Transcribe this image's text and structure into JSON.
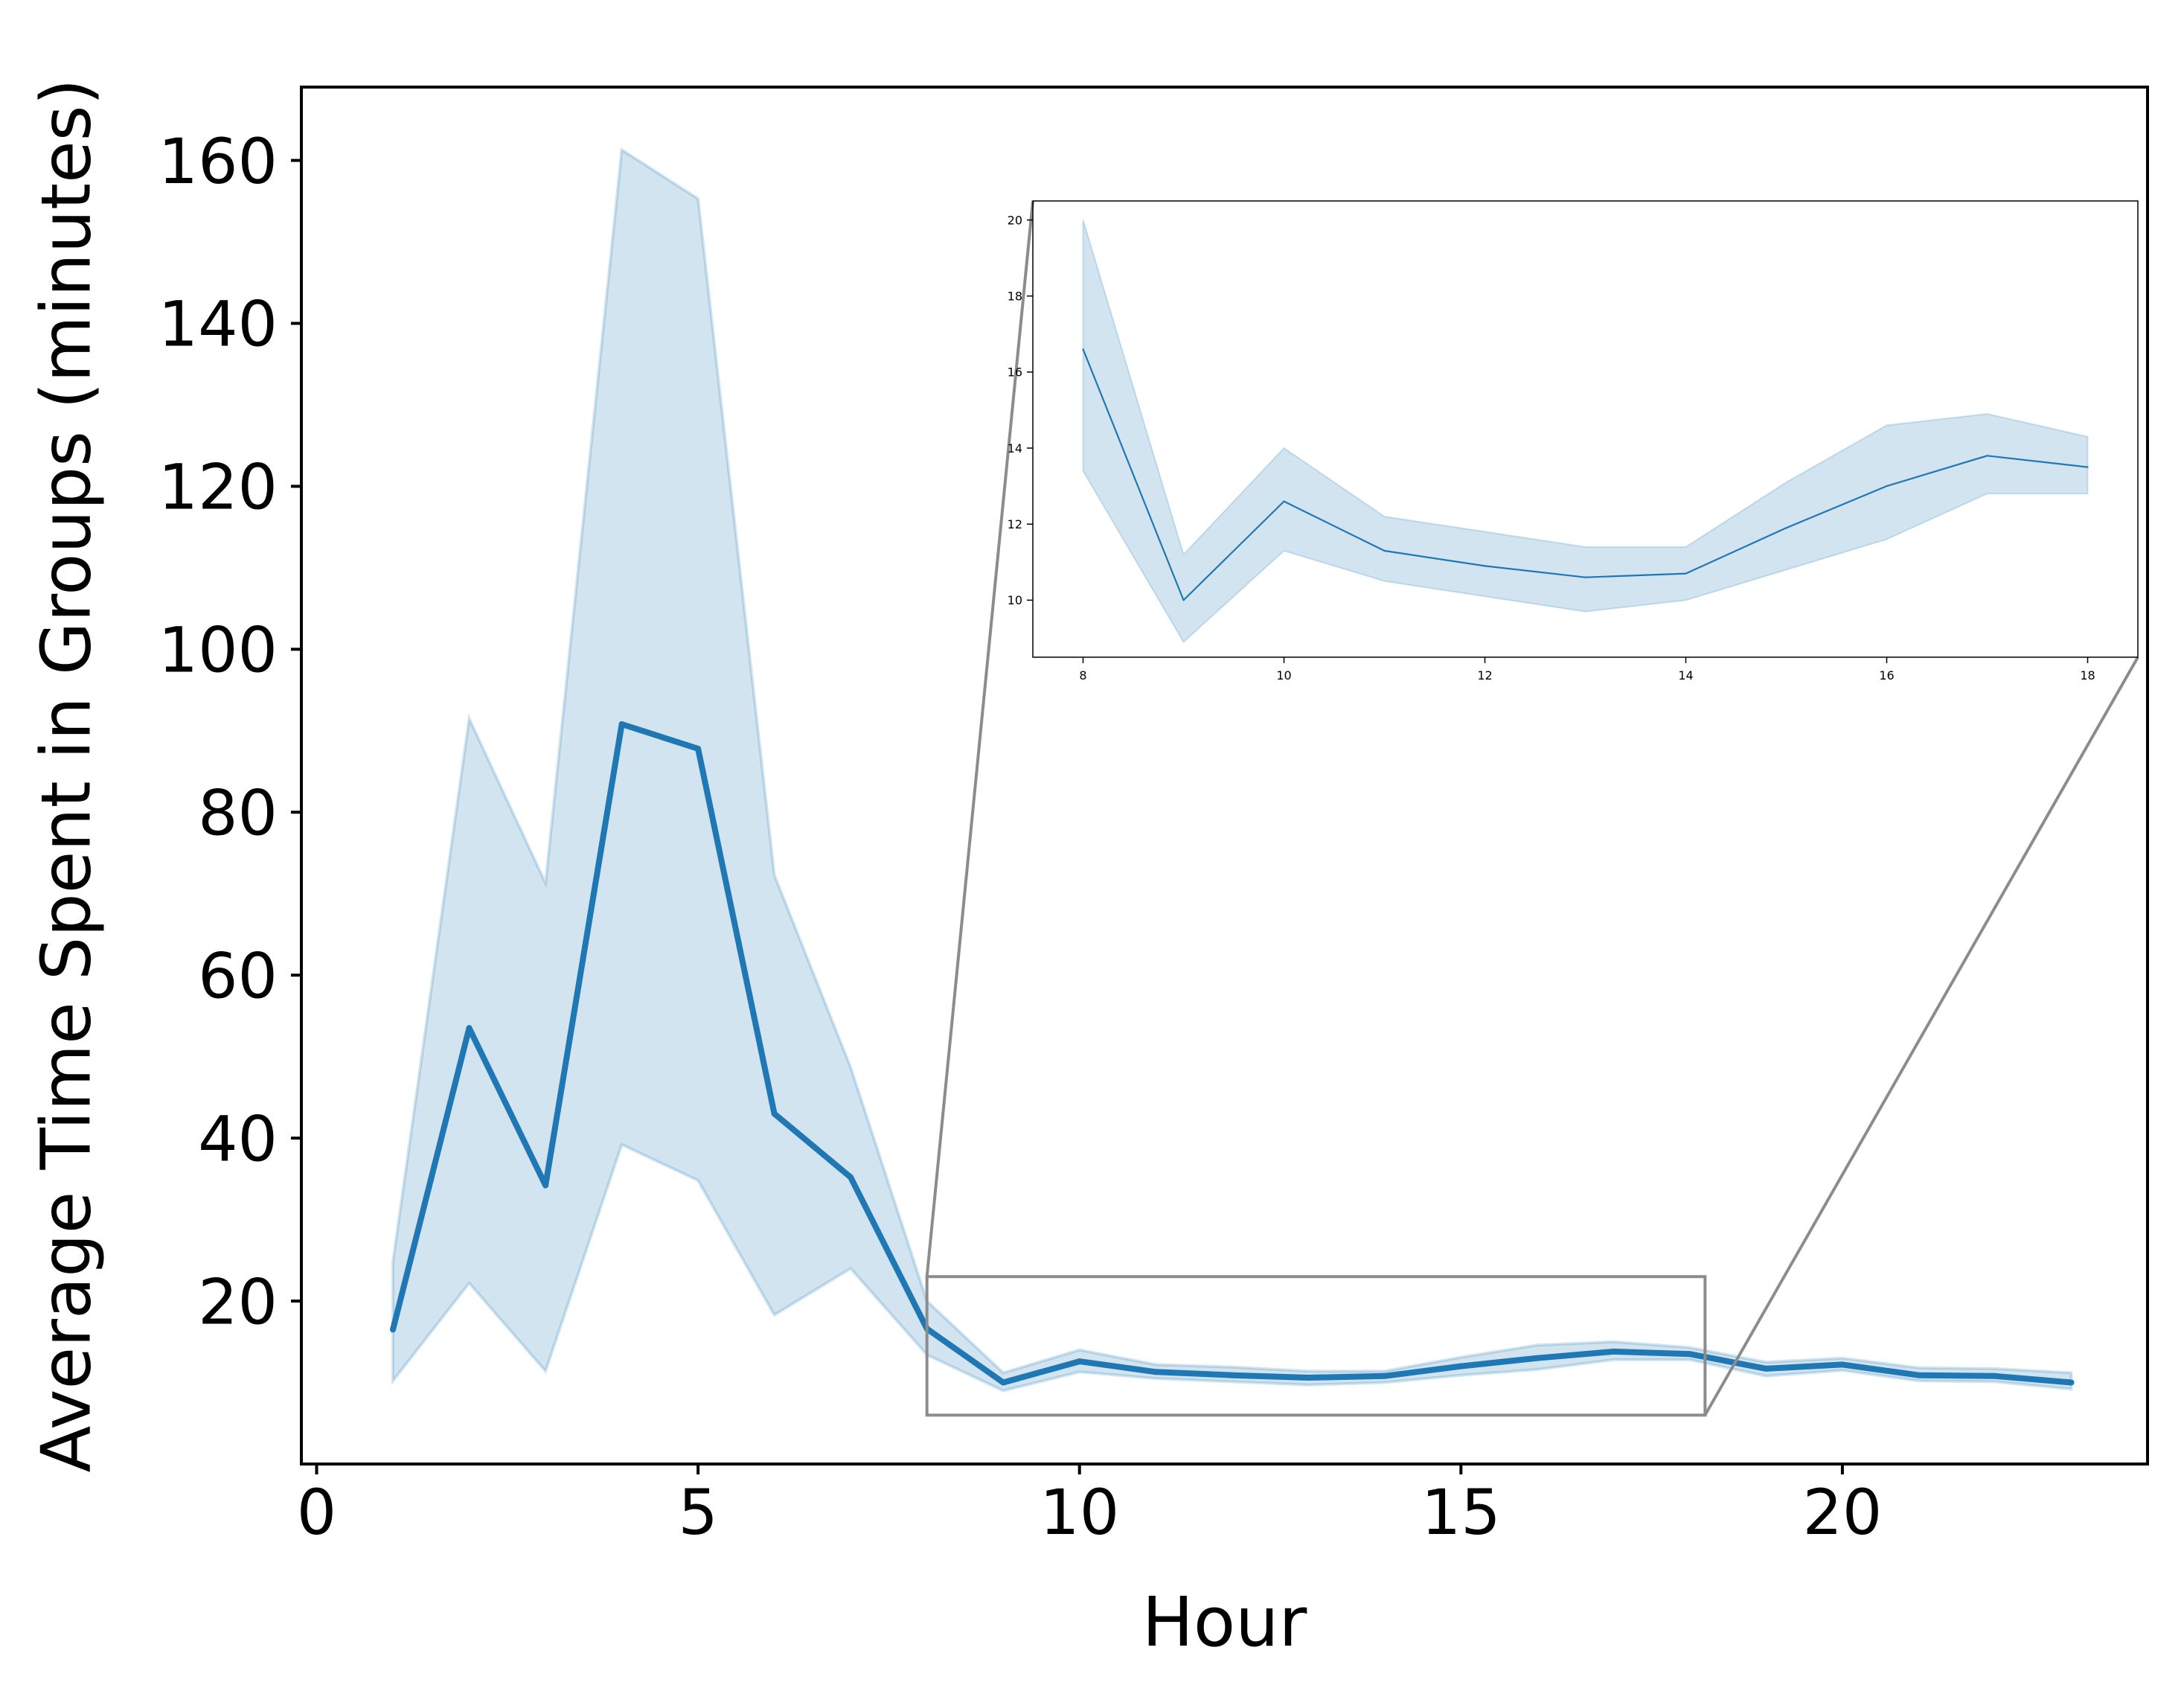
{
  "colors": {
    "line": "#1f77b4",
    "band": "#1f77b4",
    "zoom_box": "#8c8c8c",
    "axis": "#000000"
  },
  "chart_data": [
    {
      "type": "line",
      "title": "",
      "xlabel": "Hour",
      "ylabel": "Average Time Spent in Groups (minutes)",
      "xlim": [
        -0.2,
        24.0
      ],
      "ylim": [
        0,
        169
      ],
      "xticks": [
        0,
        5,
        10,
        15,
        20
      ],
      "yticks": [
        20,
        40,
        60,
        80,
        100,
        120,
        140,
        160
      ],
      "grid": false,
      "legend": "none",
      "series": [
        {
          "x": [
            1,
            2,
            3,
            4,
            5,
            6,
            7,
            8,
            9,
            10,
            11,
            12,
            13,
            14,
            15,
            16,
            17,
            18,
            19,
            20,
            21,
            22,
            23
          ],
          "y": [
            16.5,
            53.5,
            34.2,
            90.8,
            87.8,
            43.0,
            35.2,
            16.6,
            10.0,
            12.6,
            11.3,
            10.9,
            10.6,
            10.8,
            12.0,
            13.0,
            13.8,
            13.5,
            11.7,
            12.2,
            10.9,
            10.8,
            10.0
          ],
          "ci_low": [
            10.2,
            22.2,
            11.4,
            39.2,
            34.8,
            18.3,
            24.0,
            13.4,
            9.0,
            11.3,
            10.5,
            10.1,
            9.7,
            10.0,
            10.9,
            11.6,
            12.8,
            12.8,
            10.8,
            11.5,
            10.2,
            10.1,
            9.2
          ],
          "ci_high": [
            24.8,
            91.5,
            71.3,
            161.3,
            155.3,
            72.3,
            48.7,
            20.0,
            11.2,
            14.0,
            12.2,
            11.9,
            11.4,
            11.4,
            13.1,
            14.6,
            15.0,
            14.3,
            12.5,
            13.0,
            11.8,
            11.7,
            11.2
          ]
        }
      ],
      "zoom_region": {
        "x": [
          8.0,
          18.2
        ],
        "y": [
          6,
          23
        ]
      }
    },
    {
      "type": "line",
      "title": "",
      "xlabel": "",
      "ylabel": "",
      "xlim": [
        7.5,
        18.5
      ],
      "ylim": [
        8.5,
        20.5
      ],
      "xticks": [
        8,
        10,
        12,
        14,
        16,
        18
      ],
      "yticks": [
        10,
        12,
        14,
        16,
        18,
        20
      ],
      "grid": false,
      "legend": "none",
      "series": [
        {
          "x": [
            8,
            9,
            10,
            11,
            12,
            13,
            14,
            15,
            16,
            17,
            18
          ],
          "y": [
            16.6,
            10.0,
            12.6,
            11.3,
            10.9,
            10.6,
            10.7,
            11.9,
            13.0,
            13.8,
            13.5
          ],
          "ci_low": [
            13.4,
            8.9,
            11.3,
            10.5,
            10.1,
            9.7,
            10.0,
            10.8,
            11.6,
            12.8,
            12.8
          ],
          "ci_high": [
            20.0,
            11.2,
            14.0,
            12.2,
            11.8,
            11.4,
            11.4,
            13.1,
            14.6,
            14.9,
            14.3
          ]
        }
      ]
    }
  ]
}
